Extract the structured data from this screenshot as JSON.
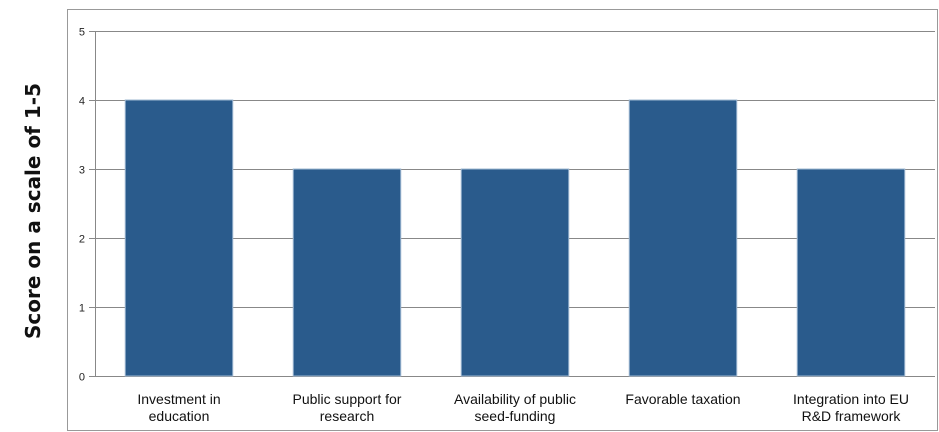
{
  "chart_data": {
    "type": "bar",
    "title": "",
    "xlabel": "",
    "ylabel": "Score on a scale of 1-5",
    "ylim": [
      0,
      5
    ],
    "yticks": [
      0,
      1,
      2,
      3,
      4,
      5
    ],
    "grid": true,
    "categories": [
      [
        "Investment in",
        "education"
      ],
      [
        "Public support for",
        "research"
      ],
      [
        "Availability of public",
        "seed-funding"
      ],
      [
        "Favorable taxation"
      ],
      [
        "Integration into EU",
        "R&D framework"
      ]
    ],
    "values": [
      4,
      3,
      3,
      4,
      3
    ],
    "colors": {
      "bar": "#2a5b8c",
      "bar_edge": "#9fb8d2",
      "grid": "#888888",
      "frame": "#999999"
    }
  }
}
